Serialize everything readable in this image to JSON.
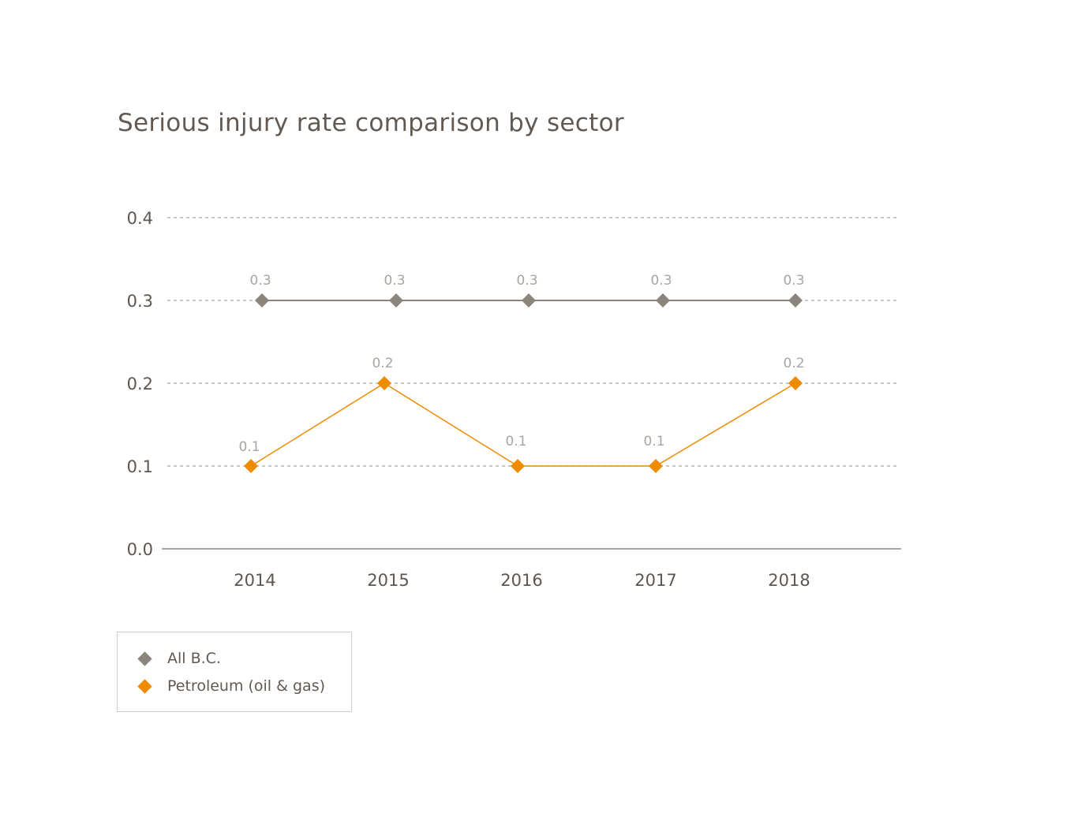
{
  "chart_data": {
    "type": "line",
    "title": "Serious injury rate comparison by sector",
    "categories": [
      "2014",
      "2015",
      "2016",
      "2017",
      "2018"
    ],
    "ylim": [
      0,
      0.4
    ],
    "yticks": [
      "0.0",
      "0.1",
      "0.2",
      "0.3",
      "0.4"
    ],
    "grid": true,
    "legend_placement": "bottom-left",
    "series": [
      {
        "name": "All B.C.",
        "values": [
          0.3,
          0.3,
          0.3,
          0.3,
          0.3
        ],
        "labels": [
          "0.3",
          "0.3",
          "0.3",
          "0.3",
          "0.3"
        ],
        "color": "#8c857e"
      },
      {
        "name": "Petroleum (oil & gas)",
        "values": [
          0.1,
          0.2,
          0.1,
          0.1,
          0.2
        ],
        "labels": [
          "0.1",
          "0.2",
          "0.1",
          "0.1",
          "0.2"
        ],
        "color": "#ee8b00"
      }
    ]
  }
}
